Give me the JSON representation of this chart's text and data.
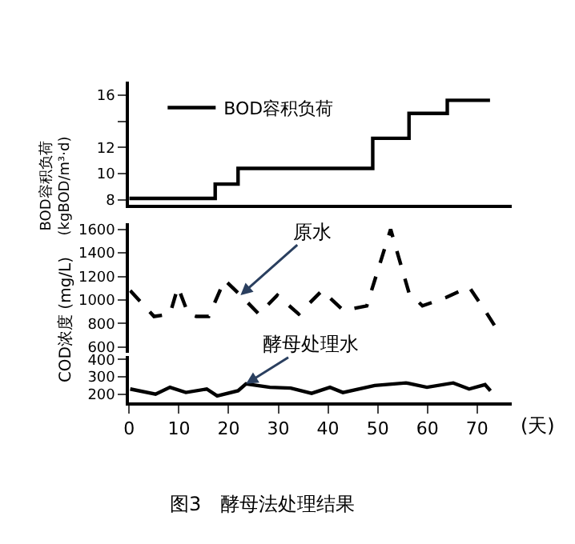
{
  "chart_data": [
    {
      "type": "step",
      "ylabel": "BOD容积负荷\n(kgBOD/m³·d)",
      "xlim": [
        0,
        77
      ],
      "ylim": [
        7.6,
        17
      ],
      "yticks": [
        8,
        10,
        12,
        {
          "value": 14,
          "label": null
        },
        16
      ],
      "tick_labels": "y",
      "legend": "top left",
      "marker": "none",
      "series": [
        {
          "name": "BOD容积负荷",
          "color": "#000000",
          "x": [
            0,
            17.3,
            21.9,
            49,
            56.3,
            64,
            72.6
          ],
          "values": [
            8.1,
            9.2,
            10.4,
            12.7,
            14.6,
            15.6,
            15.6
          ]
        }
      ]
    },
    {
      "type": "line",
      "ylabel": "COD浓度 (mg/L)",
      "xlim": [
        0,
        77
      ],
      "ylim": [
        550,
        1650
      ],
      "yticks": [
        600,
        800,
        1000,
        1200,
        1400,
        1600
      ],
      "tick_labels": "y",
      "marker": "none",
      "line_style": "dashed",
      "series": [
        {
          "name": "原水",
          "color": "#000000",
          "x": [
            0.2,
            5,
            8.2,
            9.8,
            11.9,
            13.5,
            16,
            19.2,
            22.4,
            26.1,
            29.8,
            34.1,
            38.8,
            43.1,
            47.8,
            52.6,
            56.3,
            59,
            63.7,
            68.4,
            71.6,
            74.3
          ],
          "values": [
            1080,
            860,
            880,
            1110,
            880,
            860,
            860,
            1170,
            1040,
            880,
            1040,
            880,
            1080,
            910,
            950,
            1600,
            1060,
            950,
            1020,
            1110,
            910,
            730
          ]
        }
      ]
    },
    {
      "type": "line",
      "xlabel": "(天)",
      "xlim": [
        0,
        77
      ],
      "xticks": [
        0,
        10,
        20,
        30,
        40,
        50,
        60,
        70
      ],
      "ylim": [
        155,
        420
      ],
      "yticks": [
        200,
        300,
        400
      ],
      "marker": "none",
      "line_style": "solid",
      "annotations": [
        "图3　酵母法处理结果"
      ],
      "series": [
        {
          "name": "酵母处理水",
          "color": "#000000",
          "x": [
            0.2,
            5.3,
            8.2,
            11.4,
            15.6,
            17.7,
            21.9,
            23.5,
            28.3,
            32.5,
            36.7,
            40.4,
            43,
            49.4,
            55.7,
            59.9,
            65.2,
            68.4,
            71.6,
            72.7
          ],
          "values": [
            230,
            200,
            240,
            210,
            230,
            190,
            220,
            260,
            240,
            235,
            205,
            240,
            210,
            250,
            265,
            240,
            265,
            230,
            255,
            220
          ]
        }
      ]
    }
  ]
}
